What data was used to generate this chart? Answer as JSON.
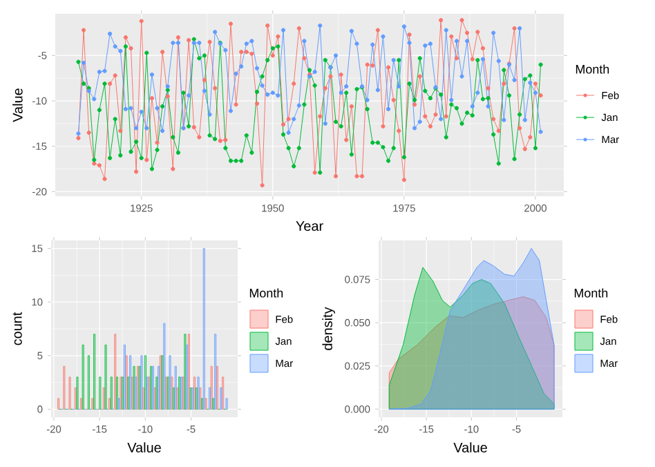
{
  "chart_data": [
    {
      "type": "line",
      "xlabel": "Year",
      "ylabel": "Value",
      "legend_title": "Month",
      "legend": "right",
      "grid": true,
      "marker": "circle",
      "line_style": "solid",
      "xlim": [
        1908.6,
        2005.4
      ],
      "ylim": [
        -20.5,
        -0.4
      ],
      "xticks": [
        1925,
        1950,
        1975,
        2000
      ],
      "yticks": [
        -20,
        -15,
        -10,
        -5
      ],
      "x": [
        1913,
        1914,
        1915,
        1916,
        1917,
        1918,
        1919,
        1920,
        1921,
        1922,
        1923,
        1924,
        1925,
        1926,
        1927,
        1928,
        1929,
        1930,
        1931,
        1932,
        1933,
        1934,
        1935,
        1936,
        1937,
        1938,
        1939,
        1940,
        1941,
        1942,
        1943,
        1944,
        1945,
        1946,
        1947,
        1948,
        1949,
        1950,
        1951,
        1952,
        1953,
        1954,
        1955,
        1956,
        1957,
        1958,
        1959,
        1960,
        1961,
        1962,
        1963,
        1964,
        1965,
        1966,
        1967,
        1968,
        1969,
        1970,
        1971,
        1972,
        1973,
        1974,
        1975,
        1976,
        1977,
        1978,
        1979,
        1980,
        1981,
        1982,
        1983,
        1984,
        1985,
        1986,
        1987,
        1988,
        1989,
        1990,
        1991,
        1992,
        1993,
        1994,
        1995,
        1996,
        1997,
        1998,
        1999,
        2000,
        2001
      ],
      "series": [
        {
          "name": "Feb",
          "color": "#f8766d",
          "values": [
            -14.1,
            -2.2,
            -13.5,
            -16.9,
            -17.1,
            -18.6,
            -8.1,
            -7.2,
            -13.3,
            -3.0,
            -4.2,
            -17.8,
            -1.2,
            -16.5,
            -9.7,
            -14.6,
            -4.6,
            -9.5,
            -17.5,
            -3.0,
            -13.0,
            -3.3,
            -12.9,
            -14.0,
            -7.7,
            -3.5,
            -8.6,
            -14.4,
            -14.3,
            -1.5,
            -10.4,
            -4.6,
            -4.6,
            -4.8,
            -10.3,
            -19.3,
            -1.7,
            -5.0,
            -2.9,
            -12.6,
            -12.0,
            -8.1,
            -2.0,
            -5.3,
            -7.1,
            -17.9,
            -11.7,
            -8.6,
            -7.3,
            -18.3,
            -7.1,
            -14.3,
            -10.6,
            -18.3,
            -18.3,
            -6.0,
            -6.1,
            -2.2,
            -12.8,
            -6.3,
            -9.9,
            -13.3,
            -18.7,
            -2.7,
            -10.4,
            -7.3,
            -11.7,
            -12.8,
            -11.5,
            -1.1,
            -11.7,
            -2.9,
            -5.3,
            -1.1,
            -2.5,
            -5.4,
            -2.4,
            -4.2,
            -8.6,
            -12.0,
            -13.3,
            -8.1,
            -5.9,
            -2.0,
            -13.0,
            -15.3,
            -14.0,
            -8.1,
            -9.4
          ]
        },
        {
          "name": "Jan",
          "color": "#00ba38",
          "values": [
            -5.7,
            -8.1,
            -8.6,
            -16.5,
            -11.0,
            -8.1,
            -16.3,
            -12.0,
            -16.0,
            -4.0,
            -15.6,
            -14.5,
            -16.3,
            -4.7,
            -17.5,
            -15.4,
            -10.6,
            -8.8,
            -14.0,
            -15.7,
            -9.1,
            -12.8,
            -3.2,
            -5.3,
            -5.0,
            -13.8,
            -14.2,
            -3.6,
            -15.2,
            -16.6,
            -16.6,
            -16.6,
            -13.8,
            -15.7,
            -9.0,
            -7.3,
            -5.5,
            -4.2,
            -4.0,
            -13.7,
            -15.2,
            -17.2,
            -15.2,
            -10.4,
            -6.6,
            -8.3,
            -17.9,
            -5.5,
            -6.3,
            -12.3,
            -12.8,
            -9.1,
            -15.9,
            -8.7,
            -8.5,
            -10.9,
            -14.6,
            -14.6,
            -15.1,
            -16.6,
            -15.2,
            -5.5,
            -16.2,
            -8.1,
            -9.9,
            -5.3,
            -8.9,
            -9.7,
            -8.6,
            -9.3,
            -14.0,
            -10.4,
            -10.8,
            -12.5,
            -11.3,
            -11.6,
            -5.5,
            -9.8,
            -9.7,
            -13.7,
            -16.9,
            -6.6,
            -9.4,
            -16.4,
            -11.5,
            -7.6,
            -7.2,
            -15.2,
            -6.0
          ]
        },
        {
          "name": "Mar",
          "color": "#619cff",
          "values": [
            -13.6,
            -5.8,
            -8.9,
            -9.8,
            -6.8,
            -6.7,
            -2.6,
            -4.0,
            -4.5,
            -10.9,
            -10.8,
            -13.0,
            -11.2,
            -13.0,
            -7.1,
            -10.8,
            -13.3,
            -8.4,
            -3.6,
            -3.6,
            -13.0,
            -9.4,
            -3.6,
            -3.6,
            -8.9,
            -11.5,
            -2.4,
            -3.7,
            -4.4,
            -11.1,
            -7.0,
            -6.2,
            -3.7,
            -3.4,
            -6.4,
            -8.3,
            -9.3,
            -9.1,
            -9.4,
            -2.2,
            -13.5,
            -12.0,
            -10.5,
            -3.4,
            -7.3,
            -6.8,
            -1.7,
            -12.5,
            -6.3,
            -5.0,
            -9.1,
            -8.4,
            -2.3,
            -3.7,
            -8.4,
            -9.9,
            -3.8,
            -8.8,
            -2.9,
            -10.9,
            -5.5,
            -8.4,
            -1.8,
            -3.6,
            -13.0,
            -12.3,
            -3.9,
            -3.7,
            -8.5,
            -12.0,
            -2.2,
            -9.9,
            -3.4,
            -7.3,
            -3.4,
            -10.6,
            -9.1,
            -5.4,
            -10.6,
            -2.5,
            -5.6,
            -12.1,
            -6.0,
            -7.7,
            -2.0,
            -12.1,
            -8.0,
            -9.1,
            -13.4
          ]
        }
      ]
    },
    {
      "type": "histogram",
      "xlabel": "Value",
      "ylabel": "count",
      "legend_title": "Month",
      "legend": "right",
      "grid": true,
      "xlim": [
        -20.3,
        0.1
      ],
      "ylim": [
        -0.75,
        15.75
      ],
      "xticks": [
        -20,
        -15,
        -10,
        -5
      ],
      "yticks": [
        0,
        5,
        10,
        15
      ],
      "bins": [
        -19.6,
        -18.98,
        -18.36,
        -17.74,
        -17.12,
        -16.5,
        -15.88,
        -15.26,
        -14.64,
        -14.02,
        -13.4,
        -12.78,
        -12.16,
        -11.54,
        -10.92,
        -10.3,
        -9.68,
        -9.06,
        -8.44,
        -7.82,
        -7.2,
        -6.58,
        -5.96,
        -5.34,
        -4.72,
        -4.1,
        -3.48,
        -2.86,
        -2.24,
        -1.62,
        -1.0
      ],
      "series": [
        {
          "name": "Feb",
          "color": "#f8766d",
          "values": [
            1,
            4,
            3,
            2,
            1,
            0,
            1,
            0,
            2,
            1,
            7,
            3,
            5,
            3,
            4,
            2,
            3,
            2,
            5,
            3,
            3,
            2,
            3,
            7,
            3,
            2,
            1,
            4,
            4,
            3
          ]
        },
        {
          "name": "Jan",
          "color": "#00ba38",
          "values": [
            0,
            0,
            0,
            3,
            6,
            5,
            7,
            3,
            6,
            3,
            3,
            3,
            3,
            4,
            4,
            5,
            4,
            3,
            5,
            3,
            2,
            3,
            7,
            2,
            2,
            1,
            0,
            1,
            0,
            0
          ]
        },
        {
          "name": "Mar",
          "color": "#619cff",
          "values": [
            0,
            0,
            0,
            0,
            0,
            0,
            0,
            0,
            0,
            0,
            1,
            6,
            5,
            3,
            5,
            3,
            4,
            4,
            8,
            5,
            4,
            3,
            6,
            2,
            3,
            15,
            2,
            7,
            2,
            1
          ]
        }
      ]
    },
    {
      "type": "area",
      "xlabel": "Value",
      "ylabel": "density",
      "legend_title": "Month",
      "legend": "right",
      "grid": true,
      "xlim": [
        -20.3,
        0.1
      ],
      "ylim": [
        -0.0047,
        0.0976
      ],
      "xticks": [
        -20,
        -15,
        -10,
        -5
      ],
      "yticks": [
        {
          "value": 0,
          "label": "0.000"
        },
        {
          "value": 0.025,
          "label": "0.025"
        },
        {
          "value": 0.05,
          "label": "0.050"
        },
        {
          "value": 0.075,
          "label": "0.075"
        }
      ],
      "series": [
        {
          "name": "Feb",
          "color": "#f8766d",
          "x": [
            -19.13,
            -18.1,
            -16.05,
            -14.0,
            -12.46,
            -10.92,
            -9.39,
            -7.34,
            -5.8,
            -4.26,
            -2.98,
            -1.7,
            -0.82
          ],
          "values": [
            0.021,
            0.029,
            0.037,
            0.0475,
            0.054,
            0.053,
            0.057,
            0.061,
            0.063,
            0.065,
            0.063,
            0.053,
            0.037
          ]
        },
        {
          "name": "Jan",
          "color": "#00ba38",
          "x": [
            -19.13,
            -17.59,
            -16.31,
            -15.39,
            -14.26,
            -13.23,
            -12.36,
            -10.92,
            -9.9,
            -8.87,
            -7.85,
            -6.31,
            -4.77,
            -3.23,
            -1.95,
            -0.82
          ],
          "values": [
            0.0137,
            0.037,
            0.066,
            0.082,
            0.074,
            0.063,
            0.059,
            0.066,
            0.0726,
            0.075,
            0.0726,
            0.061,
            0.042,
            0.024,
            0.009,
            0.003
          ]
        },
        {
          "name": "Mar",
          "color": "#619cff",
          "x": [
            -19.13,
            -17.08,
            -15.54,
            -14.51,
            -13.49,
            -12.36,
            -10.92,
            -9.39,
            -8.62,
            -7.59,
            -6.31,
            -5.28,
            -4.26,
            -3.34,
            -2.46,
            -1.7,
            -0.82
          ],
          "values": [
            0.0,
            0.0005,
            0.003,
            0.011,
            0.032,
            0.057,
            0.069,
            0.082,
            0.086,
            0.083,
            0.078,
            0.077,
            0.0845,
            0.093,
            0.086,
            0.063,
            0.037
          ]
        }
      ]
    }
  ]
}
